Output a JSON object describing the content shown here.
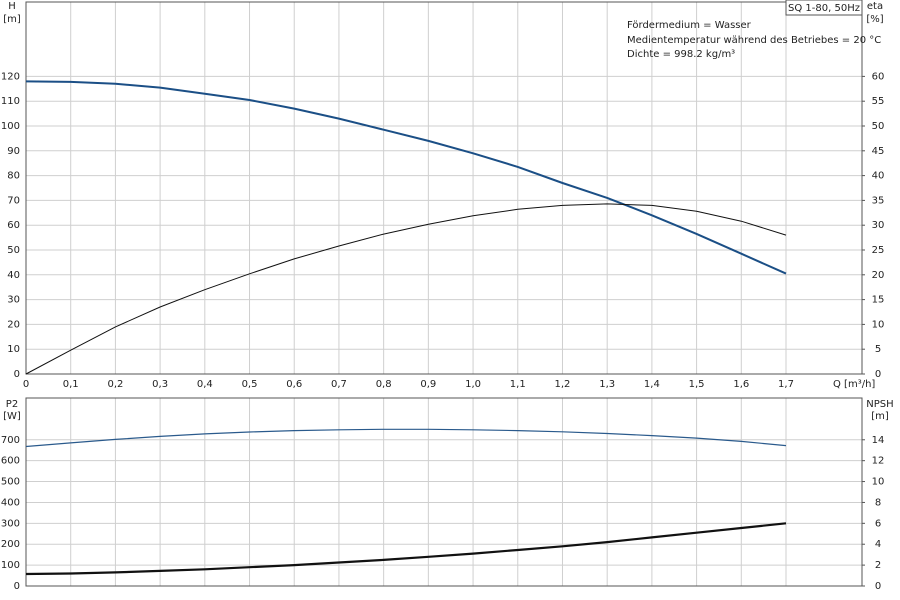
{
  "chart_data": [
    {
      "type": "line",
      "title": "SQ 1-80, 50Hz",
      "annotations": [
        "Fördermedium = Wasser",
        "Medientemperatur während des Betriebes = 20 °C",
        "Dichte = 998.2 kg/m³"
      ],
      "y_label": "H",
      "y_unit": "[m]",
      "y2_label": "eta",
      "y2_unit": "[%]",
      "x_label": "Q [m³/h]",
      "x": [
        0,
        0.1,
        0.2,
        0.3,
        0.4,
        0.5,
        0.6,
        0.7,
        0.8,
        0.9,
        1.0,
        1.1,
        1.2,
        1.3,
        1.4,
        1.5,
        1.6,
        1.7
      ],
      "xlim": [
        0,
        1.87
      ],
      "xticks": [
        0,
        {
          "value": 0.1,
          "label": "0,1"
        },
        {
          "value": 0.2,
          "label": "0,2"
        },
        {
          "value": 0.3,
          "label": "0,3"
        },
        {
          "value": 0.4,
          "label": "0,4"
        },
        {
          "value": 0.5,
          "label": "0,5"
        },
        {
          "value": 0.6,
          "label": "0,6"
        },
        {
          "value": 0.7,
          "label": "0,7"
        },
        {
          "value": 0.8,
          "label": "0,8"
        },
        {
          "value": 0.9,
          "label": "0,9"
        },
        {
          "value": 1.0,
          "label": "1,0"
        },
        {
          "value": 1.1,
          "label": "1,1"
        },
        {
          "value": 1.2,
          "label": "1,2"
        },
        {
          "value": 1.3,
          "label": "1,3"
        },
        {
          "value": 1.4,
          "label": "1,4"
        },
        {
          "value": 1.5,
          "label": "1,5"
        },
        {
          "value": 1.6,
          "label": "1,6"
        },
        {
          "value": 1.7,
          "label": "1,7"
        }
      ],
      "ylim": [
        0,
        150
      ],
      "yticks": [
        0,
        10,
        20,
        30,
        40,
        50,
        60,
        70,
        80,
        90,
        100,
        110,
        120
      ],
      "y2lim": [
        0,
        75
      ],
      "y2ticks": [
        0,
        5,
        10,
        15,
        20,
        25,
        30,
        35,
        40,
        45,
        50,
        55,
        60
      ],
      "grid": true,
      "series": [
        {
          "color": "#1b4f86",
          "width": 2,
          "values": [
            118,
            117.8,
            117,
            115.5,
            113,
            110.5,
            107,
            103,
            98.5,
            94,
            89,
            83.5,
            77,
            71,
            64,
            56.5,
            48.5,
            40.5
          ]
        },
        {
          "color": "#111111",
          "width": 1,
          "axis": "y2",
          "values": [
            0,
            4.8,
            9.5,
            13.5,
            17,
            20.2,
            23.2,
            25.8,
            28.2,
            30.2,
            31.9,
            33.2,
            34,
            34.3,
            34,
            32.8,
            30.8,
            28
          ]
        }
      ]
    },
    {
      "type": "line",
      "y_label": "P2",
      "y_unit": "[W]",
      "y2_label": "NPSH",
      "y2_unit": "[m]",
      "x": [
        0,
        0.1,
        0.2,
        0.3,
        0.4,
        0.5,
        0.6,
        0.7,
        0.8,
        0.9,
        1.0,
        1.1,
        1.2,
        1.3,
        1.4,
        1.5,
        1.6,
        1.7
      ],
      "xlim": [
        0,
        1.87
      ],
      "ylim": [
        0,
        900
      ],
      "yticks": [
        0,
        100,
        200,
        300,
        400,
        500,
        600,
        700
      ],
      "y2lim": [
        0,
        18
      ],
      "y2ticks": [
        0,
        2,
        4,
        6,
        8,
        10,
        12,
        14
      ],
      "grid": true,
      "series": [
        {
          "color": "#2a5a8c",
          "width": 1.2,
          "values": [
            668,
            685,
            702,
            716,
            728,
            737,
            744,
            748,
            750,
            750,
            748,
            744,
            738,
            730,
            720,
            708,
            692,
            672
          ]
        },
        {
          "color": "#111111",
          "width": 2.2,
          "axis": "y2",
          "values": [
            1.15,
            1.2,
            1.3,
            1.45,
            1.6,
            1.8,
            2.0,
            2.25,
            2.5,
            2.8,
            3.1,
            3.45,
            3.8,
            4.2,
            4.65,
            5.1,
            5.55,
            6.0
          ]
        }
      ]
    }
  ]
}
